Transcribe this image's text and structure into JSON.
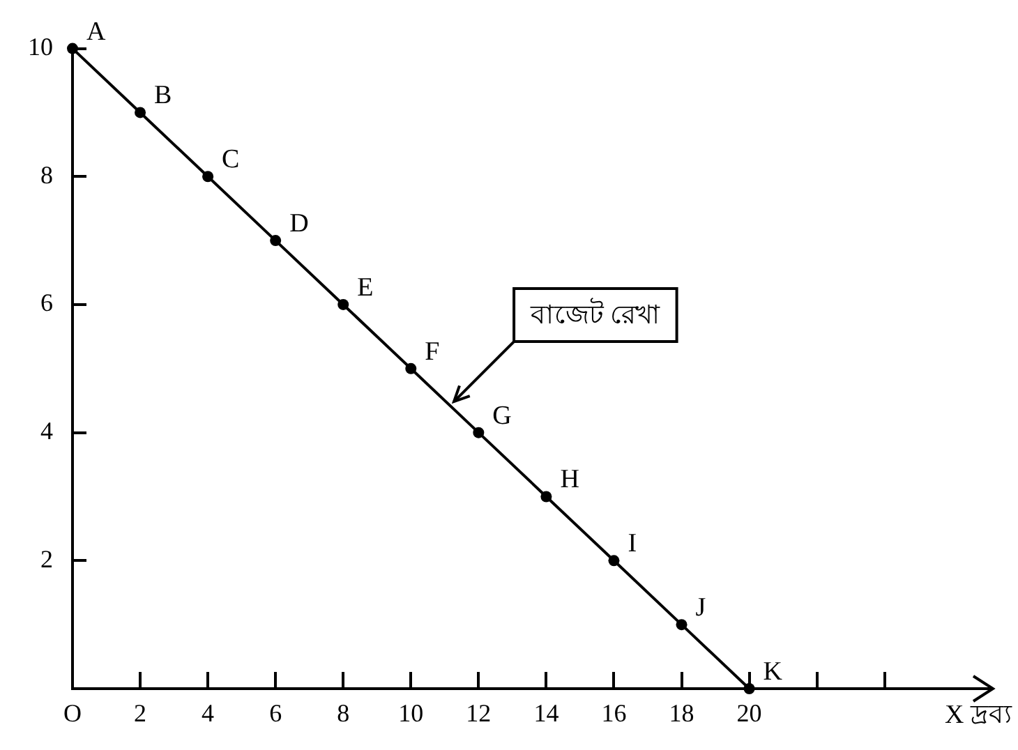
{
  "chart_data": {
    "type": "line",
    "x": [
      0,
      2,
      4,
      6,
      8,
      10,
      12,
      14,
      16,
      18,
      20
    ],
    "series": [
      {
        "color": "#000000",
        "values": [
          10,
          9,
          8,
          7,
          6,
          5,
          4,
          3,
          2,
          1,
          0
        ],
        "value_labels": [
          "A",
          "B",
          "C",
          "D",
          "E",
          "F",
          "G",
          "H",
          "I",
          "J",
          "K"
        ]
      }
    ],
    "xlabel": "X দ্রব্য",
    "xlim": [
      0,
      27.2
    ],
    "xticks": [
      {
        "value": 0,
        "label": "O"
      },
      2,
      4,
      6,
      8,
      10,
      12,
      14,
      16,
      18,
      20,
      {
        "value": 22,
        "label": null
      },
      {
        "value": 24,
        "label": null
      }
    ],
    "ylim": [
      0,
      10
    ],
    "yticks": [
      2,
      4,
      6,
      8,
      10
    ],
    "annotations": [
      {
        "text": "বাজেট রেখা",
        "x": 11.15,
        "y": 4.42
      }
    ],
    "marker": "circle",
    "line_style": "solid",
    "grid": false,
    "legend": false
  }
}
